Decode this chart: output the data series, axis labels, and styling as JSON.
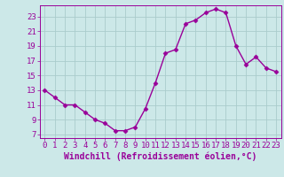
{
  "x": [
    0,
    1,
    2,
    3,
    4,
    5,
    6,
    7,
    8,
    9,
    10,
    11,
    12,
    13,
    14,
    15,
    16,
    17,
    18,
    19,
    20,
    21,
    22,
    23
  ],
  "y": [
    13,
    12,
    11,
    11,
    10,
    9,
    8.5,
    7.5,
    7.5,
    8,
    10.5,
    14,
    18,
    18.5,
    22,
    22.5,
    23.5,
    24,
    23.5,
    19,
    16.5,
    17.5,
    16,
    15.5
  ],
  "line_color": "#990099",
  "marker": "D",
  "marker_size": 2.5,
  "bg_color": "#cce8e8",
  "grid_color": "#aacccc",
  "xlabel": "Windchill (Refroidissement éolien,°C)",
  "xlabel_fontsize": 7,
  "yticks": [
    7,
    9,
    11,
    13,
    15,
    17,
    19,
    21,
    23
  ],
  "xticks": [
    0,
    1,
    2,
    3,
    4,
    5,
    6,
    7,
    8,
    9,
    10,
    11,
    12,
    13,
    14,
    15,
    16,
    17,
    18,
    19,
    20,
    21,
    22,
    23
  ],
  "ylim": [
    6.5,
    24.5
  ],
  "xlim": [
    -0.5,
    23.5
  ],
  "tick_fontsize": 6.5,
  "line_width": 1.0
}
